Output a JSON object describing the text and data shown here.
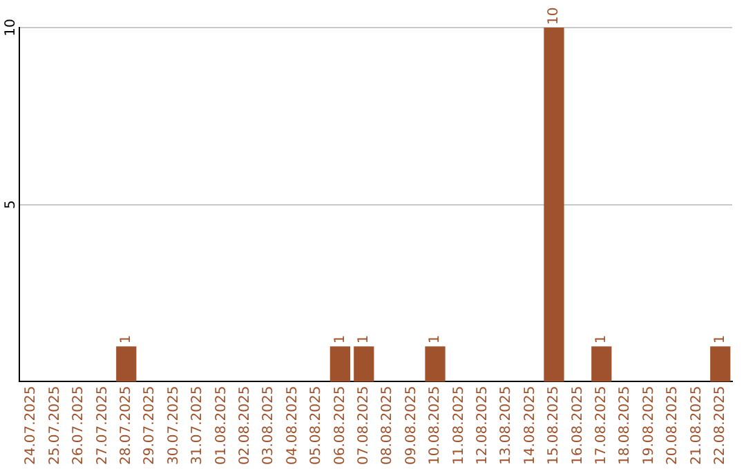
{
  "chart_data": {
    "type": "bar",
    "categories": [
      "24.07.2025",
      "25.07.2025",
      "26.07.2025",
      "27.07.2025",
      "28.07.2025",
      "29.07.2025",
      "30.07.2025",
      "31.07.2025",
      "01.08.2025",
      "02.08.2025",
      "03.08.2025",
      "04.08.2025",
      "05.08.2025",
      "06.08.2025",
      "07.08.2025",
      "08.08.2025",
      "09.08.2025",
      "10.08.2025",
      "11.08.2025",
      "12.08.2025",
      "13.08.2025",
      "14.08.2025",
      "15.08.2025",
      "16.08.2025",
      "17.08.2025",
      "18.08.2025",
      "19.08.2025",
      "20.08.2025",
      "21.08.2025",
      "22.08.2025"
    ],
    "values": [
      0,
      0,
      0,
      0,
      1,
      0,
      0,
      0,
      0,
      0,
      0,
      0,
      0,
      1,
      1,
      0,
      0,
      1,
      0,
      0,
      0,
      0,
      10,
      0,
      1,
      0,
      0,
      0,
      0,
      1
    ],
    "value_labels": [
      null,
      null,
      null,
      null,
      "1",
      null,
      null,
      null,
      null,
      null,
      null,
      null,
      null,
      "1",
      "1",
      null,
      null,
      "1",
      null,
      null,
      null,
      null,
      "10",
      null,
      "1",
      null,
      null,
      null,
      null,
      "1"
    ],
    "color": "#a0522d",
    "ylim": [
      0,
      10
    ],
    "yticks": [
      5,
      10
    ],
    "grid": "y",
    "legend": false
  }
}
